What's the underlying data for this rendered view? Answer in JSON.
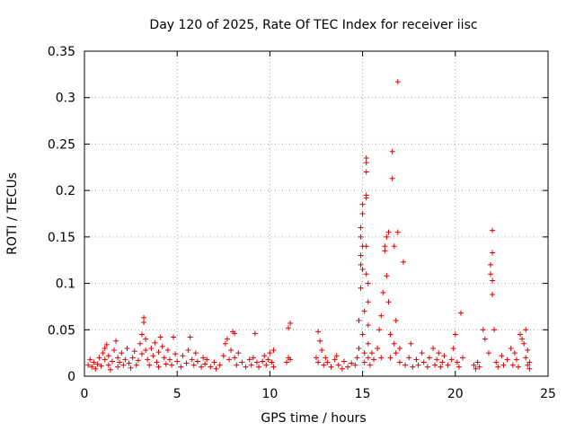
{
  "chart_data": {
    "type": "scatter",
    "title": "Day 120 of 2025, Rate Of TEC Index for receiver iisc",
    "xlabel": "GPS time / hours",
    "ylabel": "ROTI / TECUs",
    "xlim": [
      0,
      25
    ],
    "ylim": [
      0,
      0.35
    ],
    "xticks": [
      "0",
      "5",
      "10",
      "15",
      "20",
      "25"
    ],
    "yticks": [
      "0",
      "0.05",
      "0.1",
      "0.15",
      "0.2",
      "0.25",
      "0.3",
      "0.35"
    ],
    "grid": true,
    "marker": "+",
    "color": "#dd0000",
    "series": [
      {
        "name": "ROTI",
        "points": [
          [
            0.2,
            0.012
          ],
          [
            0.3,
            0.018
          ],
          [
            0.4,
            0.01
          ],
          [
            0.5,
            0.015
          ],
          [
            0.6,
            0.008
          ],
          [
            0.7,
            0.013
          ],
          [
            0.8,
            0.02
          ],
          [
            0.9,
            0.011
          ],
          [
            1.0,
            0.025
          ],
          [
            1.1,
            0.03
          ],
          [
            1.1,
            0.018
          ],
          [
            1.2,
            0.034
          ],
          [
            1.3,
            0.012
          ],
          [
            1.3,
            0.022
          ],
          [
            1.4,
            0.007
          ],
          [
            1.5,
            0.016
          ],
          [
            1.6,
            0.028
          ],
          [
            1.7,
            0.038
          ],
          [
            1.8,
            0.02
          ],
          [
            1.8,
            0.01
          ],
          [
            1.9,
            0.015
          ],
          [
            2.0,
            0.025
          ],
          [
            2.1,
            0.012
          ],
          [
            2.2,
            0.018
          ],
          [
            2.3,
            0.03
          ],
          [
            2.4,
            0.014
          ],
          [
            2.5,
            0.009
          ],
          [
            2.6,
            0.02
          ],
          [
            2.7,
            0.027
          ],
          [
            2.8,
            0.012
          ],
          [
            2.9,
            0.017
          ],
          [
            3.0,
            0.035
          ],
          [
            3.1,
            0.024
          ],
          [
            3.1,
            0.045
          ],
          [
            3.2,
            0.063
          ],
          [
            3.2,
            0.058
          ],
          [
            3.3,
            0.04
          ],
          [
            3.3,
            0.028
          ],
          [
            3.4,
            0.018
          ],
          [
            3.5,
            0.012
          ],
          [
            3.6,
            0.03
          ],
          [
            3.7,
            0.022
          ],
          [
            3.8,
            0.036
          ],
          [
            3.9,
            0.015
          ],
          [
            4.0,
            0.01
          ],
          [
            4.0,
            0.026
          ],
          [
            4.1,
            0.042
          ],
          [
            4.2,
            0.032
          ],
          [
            4.3,
            0.02
          ],
          [
            4.4,
            0.013
          ],
          [
            4.5,
            0.028
          ],
          [
            4.6,
            0.018
          ],
          [
            4.7,
            0.012
          ],
          [
            4.8,
            0.042
          ],
          [
            4.9,
            0.024
          ],
          [
            5.0,
            0.016
          ],
          [
            5.2,
            0.01
          ],
          [
            5.3,
            0.022
          ],
          [
            5.5,
            0.014
          ],
          [
            5.6,
            0.028
          ],
          [
            5.7,
            0.042
          ],
          [
            5.8,
            0.018
          ],
          [
            5.9,
            0.012
          ],
          [
            6.0,
            0.025
          ],
          [
            6.1,
            0.016
          ],
          [
            6.3,
            0.01
          ],
          [
            6.4,
            0.02
          ],
          [
            6.5,
            0.013
          ],
          [
            6.6,
            0.018
          ],
          [
            6.8,
            0.01
          ],
          [
            7.0,
            0.015
          ],
          [
            7.1,
            0.008
          ],
          [
            7.3,
            0.012
          ],
          [
            7.5,
            0.022
          ],
          [
            7.6,
            0.035
          ],
          [
            7.7,
            0.04
          ],
          [
            7.8,
            0.018
          ],
          [
            7.9,
            0.028
          ],
          [
            8.0,
            0.048
          ],
          [
            8.1,
            0.046
          ],
          [
            8.1,
            0.02
          ],
          [
            8.2,
            0.012
          ],
          [
            8.3,
            0.025
          ],
          [
            8.5,
            0.015
          ],
          [
            8.7,
            0.01
          ],
          [
            8.9,
            0.018
          ],
          [
            9.0,
            0.012
          ],
          [
            9.1,
            0.02
          ],
          [
            9.2,
            0.046
          ],
          [
            9.3,
            0.015
          ],
          [
            9.4,
            0.01
          ],
          [
            9.6,
            0.016
          ],
          [
            9.7,
            0.022
          ],
          [
            9.8,
            0.012
          ],
          [
            9.9,
            0.018
          ],
          [
            10.0,
            0.025
          ],
          [
            10.1,
            0.015
          ],
          [
            10.2,
            0.028
          ],
          [
            10.2,
            0.01
          ],
          [
            10.9,
            0.015
          ],
          [
            11.0,
            0.02
          ],
          [
            11.0,
            0.052
          ],
          [
            11.1,
            0.057
          ],
          [
            11.1,
            0.018
          ],
          [
            12.5,
            0.02
          ],
          [
            12.6,
            0.015
          ],
          [
            12.6,
            0.048
          ],
          [
            12.7,
            0.038
          ],
          [
            12.8,
            0.028
          ],
          [
            12.9,
            0.012
          ],
          [
            13.0,
            0.02
          ],
          [
            13.1,
            0.015
          ],
          [
            13.3,
            0.01
          ],
          [
            13.5,
            0.018
          ],
          [
            13.6,
            0.022
          ],
          [
            13.7,
            0.012
          ],
          [
            13.9,
            0.008
          ],
          [
            14.0,
            0.016
          ],
          [
            14.2,
            0.01
          ],
          [
            14.4,
            0.014
          ],
          [
            14.6,
            0.012
          ],
          [
            14.7,
            0.02
          ],
          [
            14.8,
            0.03
          ],
          [
            14.8,
            0.06
          ],
          [
            14.9,
            0.095
          ],
          [
            14.9,
            0.12
          ],
          [
            14.9,
            0.13
          ],
          [
            14.9,
            0.15
          ],
          [
            14.9,
            0.16
          ],
          [
            15.0,
            0.14
          ],
          [
            15.0,
            0.175
          ],
          [
            15.0,
            0.185
          ],
          [
            15.0,
            0.115
          ],
          [
            15.0,
            0.045
          ],
          [
            15.1,
            0.025
          ],
          [
            15.1,
            0.015
          ],
          [
            15.1,
            0.07
          ],
          [
            15.2,
            0.192
          ],
          [
            15.2,
            0.195
          ],
          [
            15.2,
            0.22
          ],
          [
            15.2,
            0.23
          ],
          [
            15.2,
            0.235
          ],
          [
            15.2,
            0.14
          ],
          [
            15.2,
            0.11
          ],
          [
            15.3,
            0.1
          ],
          [
            15.3,
            0.08
          ],
          [
            15.3,
            0.055
          ],
          [
            15.3,
            0.035
          ],
          [
            15.3,
            0.02
          ],
          [
            15.4,
            0.012
          ],
          [
            15.5,
            0.025
          ],
          [
            15.6,
            0.018
          ],
          [
            15.8,
            0.03
          ],
          [
            15.9,
            0.05
          ],
          [
            16.0,
            0.065
          ],
          [
            16.0,
            0.02
          ],
          [
            16.1,
            0.09
          ],
          [
            16.2,
            0.14
          ],
          [
            16.2,
            0.135
          ],
          [
            16.3,
            0.15
          ],
          [
            16.3,
            0.108
          ],
          [
            16.4,
            0.155
          ],
          [
            16.4,
            0.08
          ],
          [
            16.5,
            0.045
          ],
          [
            16.5,
            0.02
          ],
          [
            16.6,
            0.242
          ],
          [
            16.6,
            0.213
          ],
          [
            16.7,
            0.14
          ],
          [
            16.7,
            0.035
          ],
          [
            16.8,
            0.06
          ],
          [
            16.8,
            0.025
          ],
          [
            16.9,
            0.317
          ],
          [
            16.9,
            0.155
          ],
          [
            17.0,
            0.03
          ],
          [
            17.0,
            0.015
          ],
          [
            17.2,
            0.123
          ],
          [
            17.3,
            0.012
          ],
          [
            17.5,
            0.02
          ],
          [
            17.6,
            0.035
          ],
          [
            17.7,
            0.01
          ],
          [
            17.9,
            0.018
          ],
          [
            18.0,
            0.012
          ],
          [
            18.2,
            0.025
          ],
          [
            18.3,
            0.015
          ],
          [
            18.5,
            0.01
          ],
          [
            18.6,
            0.02
          ],
          [
            18.8,
            0.03
          ],
          [
            18.9,
            0.012
          ],
          [
            19.0,
            0.018
          ],
          [
            19.1,
            0.025
          ],
          [
            19.2,
            0.01
          ],
          [
            19.3,
            0.015
          ],
          [
            19.4,
            0.022
          ],
          [
            19.6,
            0.012
          ],
          [
            19.8,
            0.018
          ],
          [
            19.9,
            0.03
          ],
          [
            20.0,
            0.045
          ],
          [
            20.1,
            0.015
          ],
          [
            20.2,
            0.01
          ],
          [
            20.3,
            0.068
          ],
          [
            20.4,
            0.02
          ],
          [
            21.0,
            0.012
          ],
          [
            21.1,
            0.008
          ],
          [
            21.2,
            0.015
          ],
          [
            21.3,
            0.01
          ],
          [
            21.5,
            0.05
          ],
          [
            21.6,
            0.04
          ],
          [
            21.8,
            0.025
          ],
          [
            21.9,
            0.11
          ],
          [
            21.9,
            0.12
          ],
          [
            22.0,
            0.157
          ],
          [
            22.0,
            0.133
          ],
          [
            22.0,
            0.103
          ],
          [
            22.0,
            0.088
          ],
          [
            22.1,
            0.05
          ],
          [
            22.2,
            0.015
          ],
          [
            22.3,
            0.01
          ],
          [
            22.5,
            0.022
          ],
          [
            22.6,
            0.012
          ],
          [
            22.8,
            0.018
          ],
          [
            23.0,
            0.03
          ],
          [
            23.1,
            0.012
          ],
          [
            23.2,
            0.025
          ],
          [
            23.3,
            0.018
          ],
          [
            23.4,
            0.01
          ],
          [
            23.5,
            0.045
          ],
          [
            23.6,
            0.04
          ],
          [
            23.7,
            0.035
          ],
          [
            23.8,
            0.05
          ],
          [
            23.8,
            0.02
          ],
          [
            23.9,
            0.012
          ],
          [
            23.9,
            0.028
          ],
          [
            24.0,
            0.015
          ],
          [
            24.0,
            0.008
          ]
        ]
      }
    ]
  }
}
